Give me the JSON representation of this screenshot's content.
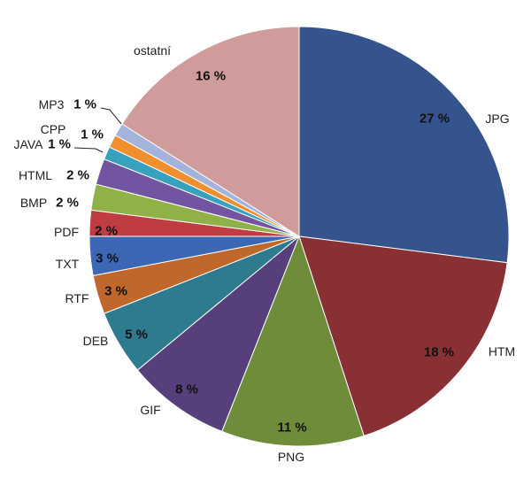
{
  "chart_data": {
    "type": "pie",
    "title": "",
    "legend": "none",
    "slices": [
      {
        "label": "JPG",
        "value": 27,
        "display": "27 %",
        "color": "#35538C"
      },
      {
        "label": "HTM",
        "value": 18,
        "display": "18 %",
        "color": "#893034"
      },
      {
        "label": "PNG",
        "value": 11,
        "display": "11 %",
        "color": "#6F8C3A"
      },
      {
        "label": "GIF",
        "value": 8,
        "display": "8 %",
        "color": "#563F7A"
      },
      {
        "label": "DEB",
        "value": 5,
        "display": "5 %",
        "color": "#2E7A8E"
      },
      {
        "label": "RTF",
        "value": 3,
        "display": "3 %",
        "color": "#C0672C"
      },
      {
        "label": "TXT",
        "value": 3,
        "display": "3 %",
        "color": "#3C67B4"
      },
      {
        "label": "PDF",
        "value": 2,
        "display": "2 %",
        "color": "#BE3C42"
      },
      {
        "label": "BMP",
        "value": 2,
        "display": "2 %",
        "color": "#90B048"
      },
      {
        "label": "HTML",
        "value": 2,
        "display": "2 %",
        "color": "#7254A0"
      },
      {
        "label": "JAVA",
        "value": 1,
        "display": "1 %",
        "color": "#38A2BE"
      },
      {
        "label": "CPP",
        "value": 1,
        "display": "1 %",
        "color": "#F18E2E"
      },
      {
        "label": "MP3",
        "value": 1,
        "display": "1 %",
        "color": "#A3B3DC"
      },
      {
        "label": "ostatní",
        "value": 16,
        "display": "16 %",
        "color": "#CF9B9B"
      }
    ]
  }
}
